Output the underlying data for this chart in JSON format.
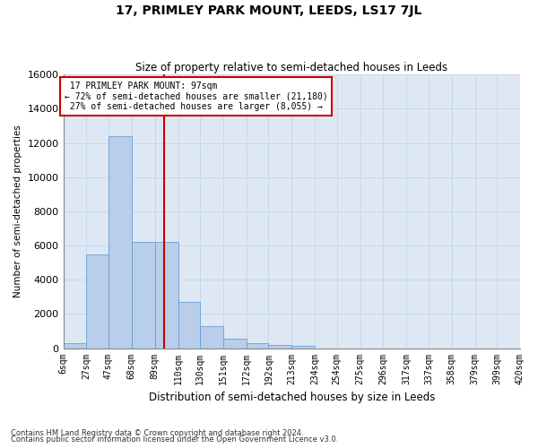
{
  "title": "17, PRIMLEY PARK MOUNT, LEEDS, LS17 7JL",
  "subtitle": "Size of property relative to semi-detached houses in Leeds",
  "xlabel": "Distribution of semi-detached houses by size in Leeds",
  "ylabel": "Number of semi-detached properties",
  "property_size": 97,
  "property_label": "17 PRIMLEY PARK MOUNT: 97sqm",
  "pct_smaller": 72,
  "pct_larger": 27,
  "n_smaller": 21180,
  "n_larger": 8055,
  "bar_color": "#b8ceea",
  "bar_edge_color": "#6b9fd4",
  "vline_color": "#cc0000",
  "annotation_box_edge": "#cc0000",
  "grid_color": "#c8d8ea",
  "background_color": "#dde8f4",
  "bin_edges": [
    6,
    27,
    47,
    68,
    89,
    110,
    130,
    151,
    172,
    192,
    213,
    234,
    254,
    275,
    296,
    317,
    337,
    358,
    379,
    399,
    420
  ],
  "bin_labels": [
    "6sqm",
    "27sqm",
    "47sqm",
    "68sqm",
    "89sqm",
    "110sqm",
    "130sqm",
    "151sqm",
    "172sqm",
    "192sqm",
    "213sqm",
    "234sqm",
    "254sqm",
    "275sqm",
    "296sqm",
    "317sqm",
    "337sqm",
    "358sqm",
    "379sqm",
    "399sqm",
    "420sqm"
  ],
  "bar_heights": [
    300,
    5500,
    12400,
    6200,
    6200,
    2700,
    1300,
    550,
    270,
    180,
    120,
    0,
    0,
    0,
    0,
    0,
    0,
    0,
    0,
    0
  ],
  "ylim": [
    0,
    16000
  ],
  "yticks": [
    0,
    2000,
    4000,
    6000,
    8000,
    10000,
    12000,
    14000,
    16000
  ],
  "footnote1": "Contains HM Land Registry data © Crown copyright and database right 2024.",
  "footnote2": "Contains public sector information licensed under the Open Government Licence v3.0."
}
